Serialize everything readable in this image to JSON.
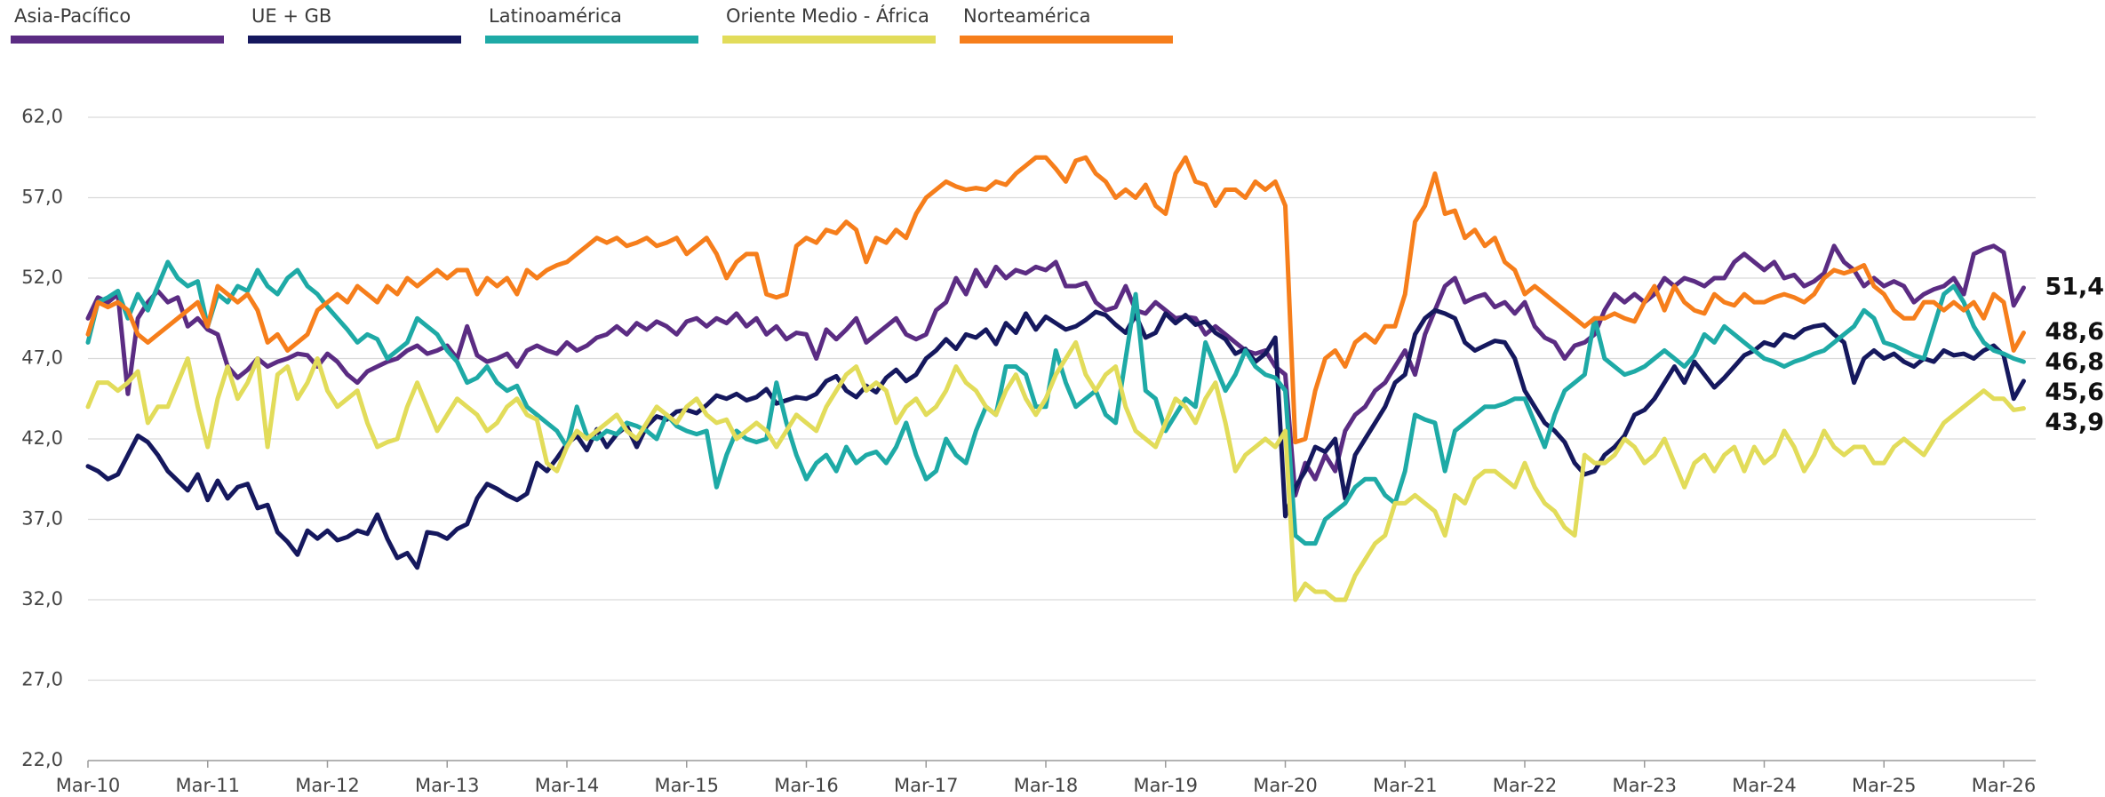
{
  "chart_data": {
    "type": "line",
    "categories": [
      "Mar-10",
      null,
      null,
      null,
      null,
      null,
      null,
      null,
      null,
      null,
      null,
      null,
      "Mar-11",
      null,
      null,
      null,
      null,
      null,
      null,
      null,
      null,
      null,
      null,
      null,
      "Mar-12",
      null,
      null,
      null,
      null,
      null,
      null,
      null,
      null,
      null,
      null,
      null,
      "Mar-13",
      null,
      null,
      null,
      null,
      null,
      null,
      null,
      null,
      null,
      null,
      null,
      "Mar-14",
      null,
      null,
      null,
      null,
      null,
      null,
      null,
      null,
      null,
      null,
      null,
      "Mar-15",
      null,
      null,
      null,
      null,
      null,
      null,
      null,
      null,
      null,
      null,
      null,
      "Mar-16",
      null,
      null,
      null,
      null,
      null,
      null,
      null,
      null,
      null,
      null,
      null,
      "Mar-17",
      null,
      null,
      null,
      null,
      null,
      null,
      null,
      null,
      null,
      null,
      null,
      "Mar-18",
      null,
      null,
      null,
      null,
      null,
      null,
      null,
      null,
      null,
      null,
      null,
      "Mar-19",
      null,
      null,
      null,
      null,
      null,
      null,
      null,
      null,
      null,
      null,
      null,
      "Mar-20",
      null,
      null,
      null,
      null,
      null,
      null,
      null,
      null,
      null,
      null,
      null,
      "Mar-21",
      null,
      null,
      null,
      null,
      null,
      null,
      null,
      null,
      null,
      null,
      null,
      "Mar-22",
      null,
      null,
      null,
      null,
      null,
      null,
      null,
      null,
      null,
      null,
      null,
      "Mar-23",
      null,
      null,
      null,
      null,
      null,
      null,
      null,
      null,
      null,
      null,
      null,
      "Mar-24",
      null,
      null,
      null,
      null,
      null,
      null,
      null,
      null,
      null,
      null,
      null,
      "Mar-25",
      null,
      null,
      null,
      null,
      null,
      null,
      null,
      null,
      null,
      null,
      null,
      "Mar-26",
      null,
      null
    ],
    "ylim": [
      22,
      62
    ],
    "yticks": [
      {
        "value": 22,
        "label": "22,0"
      },
      {
        "value": 27,
        "label": "27,0"
      },
      {
        "value": 32,
        "label": "32,0"
      },
      {
        "value": 37,
        "label": "37,0"
      },
      {
        "value": 42,
        "label": "42,0"
      },
      {
        "value": 47,
        "label": "47,0"
      },
      {
        "value": 52,
        "label": "52,0"
      },
      {
        "value": 57,
        "label": "57,0"
      },
      {
        "value": 62,
        "label": "62,0"
      }
    ],
    "grid": true,
    "series": [
      {
        "name": "Asia-Pacífico",
        "color": "#5b2c83",
        "value_labels": {
          "194": "51,4"
        },
        "values": [
          49.5,
          50.8,
          50.5,
          51,
          44.8,
          49.5,
          50.5,
          51.2,
          50.5,
          50.8,
          49,
          49.5,
          48.8,
          48.5,
          46.5,
          45.8,
          46.3,
          47,
          46.5,
          46.8,
          47,
          47.3,
          47.2,
          46.5,
          47.3,
          46.8,
          46,
          45.5,
          46.2,
          46.5,
          46.8,
          47,
          47.5,
          47.8,
          47.3,
          47.5,
          47.8,
          47,
          49,
          47.2,
          46.8,
          47,
          47.3,
          46.5,
          47.5,
          47.8,
          47.5,
          47.3,
          48,
          47.5,
          47.8,
          48.3,
          48.5,
          49,
          48.5,
          49.2,
          48.8,
          49.3,
          49,
          48.5,
          49.3,
          49.5,
          49,
          49.5,
          49.2,
          49.8,
          49,
          49.5,
          48.5,
          49,
          48.2,
          48.6,
          48.5,
          47,
          48.8,
          48.2,
          48.8,
          49.5,
          48,
          48.5,
          49,
          49.5,
          48.5,
          48.2,
          48.5,
          50,
          50.5,
          52,
          51,
          52.5,
          51.5,
          52.7,
          52,
          52.5,
          52.3,
          52.7,
          52.5,
          53,
          51.5,
          51.5,
          51.7,
          50.5,
          50,
          50.2,
          51.5,
          50,
          49.8,
          50.5,
          50,
          49.5,
          49.6,
          49.5,
          48.5,
          49,
          48.5,
          48,
          47.5,
          47.3,
          47.5,
          46.5,
          46,
          38.5,
          40.5,
          39.5,
          41,
          40,
          42.5,
          43.5,
          44,
          45,
          45.5,
          46.5,
          47.5,
          46,
          48.5,
          50,
          51.5,
          52,
          50.5,
          50.8,
          51,
          50.2,
          50.5,
          49.8,
          50.5,
          49,
          48.3,
          48,
          47,
          47.8,
          48,
          48.5,
          50,
          51,
          50.5,
          51,
          50.5,
          51,
          52,
          51.5,
          52,
          51.8,
          51.5,
          52,
          52,
          53,
          53.5,
          53,
          52.5,
          53,
          52,
          52.2,
          51.5,
          51.8,
          52.3,
          54,
          53,
          52.5,
          51.5,
          52,
          51.5,
          51.8,
          51.5,
          50.5,
          51,
          51.3,
          51.5,
          52,
          51,
          53.5,
          53.8,
          54,
          53.6,
          50.3,
          51.4
        ]
      },
      {
        "name": "UE + GB",
        "color": "#15185e",
        "value_labels": {
          "194": "45,6"
        },
        "values": [
          40.3,
          40,
          39.5,
          39.8,
          41,
          42.2,
          41.8,
          41,
          40,
          39.4,
          38.8,
          39.8,
          38.2,
          39.4,
          38.3,
          39,
          39.2,
          37.7,
          37.9,
          36.2,
          35.6,
          34.8,
          36.3,
          35.8,
          36.3,
          35.7,
          35.9,
          36.3,
          36.1,
          37.3,
          35.8,
          34.6,
          34.9,
          34,
          36.2,
          36.1,
          35.8,
          36.4,
          36.7,
          38.3,
          39.2,
          38.9,
          38.5,
          38.2,
          38.6,
          40.5,
          40,
          40.8,
          41.7,
          42.2,
          41.3,
          42.6,
          41.5,
          42.3,
          42.8,
          41.5,
          42.8,
          43.4,
          43.2,
          43.7,
          43.8,
          43.6,
          44.1,
          44.7,
          44.5,
          44.8,
          44.4,
          44.6,
          45.1,
          44.2,
          44.4,
          44.6,
          44.5,
          44.8,
          45.6,
          45.9,
          45,
          44.6,
          45.3,
          44.9,
          45.8,
          46.3,
          45.6,
          46,
          47,
          47.5,
          48.2,
          47.6,
          48.5,
          48.3,
          48.8,
          47.9,
          49.2,
          48.6,
          49.8,
          48.8,
          49.6,
          49.2,
          48.8,
          49,
          49.4,
          49.9,
          49.7,
          49.1,
          48.6,
          49.7,
          48.3,
          48.6,
          49.8,
          49.2,
          49.7,
          49.1,
          49.3,
          48.6,
          48.2,
          47.3,
          47.6,
          46.8,
          47.3,
          48.3,
          37.2,
          39,
          40,
          41.5,
          41.2,
          42,
          38.3,
          41,
          42,
          43,
          44,
          45.5,
          46,
          48.5,
          49.5,
          50,
          49.8,
          49.5,
          48,
          47.5,
          47.8,
          48.1,
          48,
          47,
          45,
          44,
          43,
          42.5,
          41.8,
          40.5,
          39.8,
          40,
          41,
          41.5,
          42.2,
          43.5,
          43.8,
          44.5,
          45.5,
          46.5,
          45.5,
          46.8,
          46,
          45.2,
          45.8,
          46.5,
          47.2,
          47.5,
          48,
          47.8,
          48.5,
          48.3,
          48.8,
          49,
          49.1,
          48.5,
          48,
          45.5,
          47,
          47.5,
          47,
          47.3,
          46.8,
          46.5,
          47,
          46.8,
          47.5,
          47.2,
          47.3,
          47,
          47.5,
          47.8,
          47.2,
          44.5,
          45.6
        ]
      },
      {
        "name": "Latinoamérica",
        "color": "#1eaaa6",
        "value_labels": {
          "194": "46,8"
        },
        "values": [
          48,
          50.5,
          50.8,
          51.2,
          49.5,
          51,
          50,
          51.5,
          53,
          52,
          51.5,
          51.8,
          49,
          51,
          50.5,
          51.5,
          51.2,
          52.5,
          51.5,
          51,
          52,
          52.5,
          51.5,
          51,
          50.2,
          49.5,
          48.8,
          48,
          48.5,
          48.2,
          47,
          47.5,
          48,
          49.5,
          49,
          48.5,
          47.5,
          46.8,
          45.5,
          45.8,
          46.5,
          45.5,
          45,
          45.3,
          44,
          43.5,
          43,
          42.5,
          41.5,
          44,
          42.2,
          42,
          42.5,
          42.3,
          43,
          42.8,
          42.5,
          42,
          43.5,
          42.8,
          42.5,
          42.3,
          42.5,
          39,
          41,
          42.5,
          42,
          41.8,
          42,
          45.5,
          43,
          41,
          39.5,
          40.5,
          41,
          40,
          41.5,
          40.5,
          41,
          41.2,
          40.5,
          41.5,
          43,
          41,
          39.5,
          40,
          42,
          41,
          40.5,
          42.5,
          44,
          43.5,
          46.5,
          46.5,
          46,
          44,
          44,
          47.5,
          45.5,
          44,
          44.5,
          45,
          43.5,
          43,
          47,
          51,
          45,
          44.5,
          42.5,
          43.5,
          44.5,
          44,
          48,
          46.5,
          45,
          46,
          47.5,
          46.5,
          46,
          45.8,
          45,
          36,
          35.5,
          35.5,
          37,
          37.5,
          38,
          39,
          39.5,
          39.5,
          38.5,
          38,
          40,
          43.5,
          43.2,
          43,
          40,
          42.5,
          43,
          43.5,
          44,
          44,
          44.2,
          44.5,
          44.5,
          43,
          41.5,
          43.5,
          45,
          45.5,
          46,
          49.5,
          47,
          46.5,
          46,
          46.2,
          46.5,
          47,
          47.5,
          47,
          46.5,
          47.2,
          48.5,
          48,
          49,
          48.5,
          48,
          47.5,
          47,
          46.8,
          46.5,
          46.8,
          47,
          47.3,
          47.5,
          48,
          48.5,
          49,
          50,
          49.5,
          48,
          47.8,
          47.5,
          47.2,
          47,
          49,
          51,
          51.5,
          50.5,
          49,
          48,
          47.5,
          47.3,
          47,
          46.8
        ]
      },
      {
        "name": "Oriente Medio - África",
        "color": "#e2dc5a",
        "value_labels": {
          "194": "43,9"
        },
        "values": [
          44,
          45.5,
          45.5,
          45,
          45.5,
          46.2,
          43,
          44,
          44,
          45.5,
          47,
          44,
          41.5,
          44.5,
          46.5,
          44.5,
          45.5,
          47,
          41.5,
          46,
          46.5,
          44.5,
          45.5,
          47,
          45,
          44,
          44.5,
          45,
          43,
          41.5,
          41.8,
          42,
          44,
          45.5,
          44,
          42.5,
          43.5,
          44.5,
          44,
          43.5,
          42.5,
          43,
          44,
          44.5,
          43.5,
          43.2,
          40.5,
          40,
          41.5,
          42.5,
          42,
          42.5,
          43,
          43.5,
          42.5,
          42,
          43,
          44,
          43.5,
          43,
          44,
          44.5,
          43.5,
          43,
          43.2,
          42,
          42.5,
          43,
          42.5,
          41.5,
          42.5,
          43.5,
          43,
          42.5,
          44,
          45,
          46,
          46.5,
          45,
          45.5,
          45,
          43,
          44,
          44.5,
          43.5,
          44,
          45,
          46.5,
          45.5,
          45,
          44,
          43.5,
          45,
          46,
          44.5,
          43.5,
          44.5,
          46,
          47,
          48,
          46,
          45,
          46,
          46.5,
          44,
          42.5,
          42,
          41.5,
          43,
          44.5,
          44,
          43,
          44.5,
          45.5,
          43,
          40,
          41,
          41.5,
          42,
          41.5,
          42.5,
          32,
          33,
          32.5,
          32.5,
          32,
          32,
          33.5,
          34.5,
          35.5,
          36,
          38,
          38,
          38.5,
          38,
          37.5,
          36,
          38.5,
          38,
          39.5,
          40,
          40,
          39.5,
          39,
          40.5,
          39,
          38,
          37.5,
          36.5,
          36,
          41,
          40.5,
          40.5,
          41,
          42,
          41.5,
          40.5,
          41,
          42,
          40.5,
          39,
          40.5,
          41,
          40,
          41,
          41.5,
          40,
          41.5,
          40.5,
          41,
          42.5,
          41.5,
          40,
          41,
          42.5,
          41.5,
          41,
          41.5,
          41.5,
          40.5,
          40.5,
          41.5,
          42,
          41.5,
          41,
          42,
          43,
          43.5,
          44,
          44.5,
          45,
          44.5,
          44.5,
          43.8,
          43.9
        ]
      },
      {
        "name": "Norteamérica",
        "color": "#f67e1b",
        "value_labels": {
          "194": "48,6"
        },
        "values": [
          48.5,
          50.5,
          50.2,
          50.5,
          50,
          48.5,
          48,
          48.5,
          49,
          49.5,
          50,
          50.5,
          49,
          51.5,
          51,
          50.5,
          51,
          50,
          48,
          48.5,
          47.5,
          48,
          48.5,
          50,
          50.5,
          51,
          50.5,
          51.5,
          51,
          50.5,
          51.5,
          51,
          52,
          51.5,
          52,
          52.5,
          52,
          52.5,
          52.5,
          51,
          52,
          51.5,
          52,
          51,
          52.5,
          52,
          52.5,
          52.8,
          53,
          53.5,
          54,
          54.5,
          54.2,
          54.5,
          54,
          54.2,
          54.5,
          54,
          54.2,
          54.5,
          53.5,
          54,
          54.5,
          53.5,
          52,
          53,
          53.5,
          53.5,
          51,
          50.8,
          51,
          54,
          54.5,
          54.2,
          55,
          54.8,
          55.5,
          55,
          53,
          54.5,
          54.2,
          55,
          54.5,
          56,
          57,
          57.5,
          58,
          57.7,
          57.5,
          57.6,
          57.5,
          58,
          57.8,
          58.5,
          59,
          59.5,
          59.5,
          58.8,
          58,
          59.3,
          59.5,
          58.5,
          58,
          57,
          57.5,
          57,
          57.8,
          56.5,
          56,
          58.5,
          59.5,
          58,
          57.8,
          56.5,
          57.5,
          57.5,
          57,
          58,
          57.5,
          58,
          56.5,
          41.8,
          42,
          45,
          47,
          47.5,
          46.5,
          48,
          48.5,
          48,
          49,
          49,
          51,
          55.5,
          56.5,
          58.5,
          56,
          56.2,
          54.5,
          55,
          54,
          54.5,
          53,
          52.5,
          51,
          51.5,
          51,
          50.5,
          50,
          49.5,
          49,
          49.5,
          49.5,
          49.8,
          49.5,
          49.3,
          50.5,
          51.5,
          50,
          51.5,
          50.5,
          50,
          49.8,
          51,
          50.5,
          50.3,
          51,
          50.5,
          50.5,
          50.8,
          51,
          50.8,
          50.5,
          51,
          52,
          52.5,
          52.3,
          52.5,
          52.8,
          51.5,
          51,
          50,
          49.5,
          49.5,
          50.5,
          50.5,
          50,
          50.5,
          50,
          50.5,
          49.5,
          51,
          50.5,
          47.5,
          48.6
        ]
      }
    ]
  }
}
